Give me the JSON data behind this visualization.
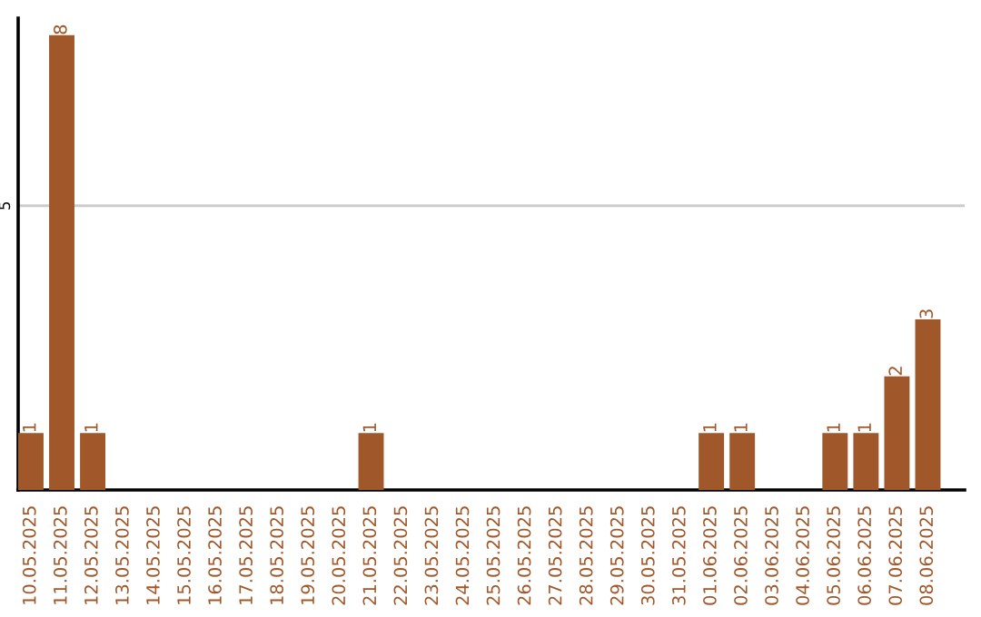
{
  "chart_data": {
    "type": "bar",
    "categories": [
      "10.05.2025",
      "11.05.2025",
      "12.05.2025",
      "13.05.2025",
      "14.05.2025",
      "15.05.2025",
      "16.05.2025",
      "17.05.2025",
      "18.05.2025",
      "19.05.2025",
      "20.05.2025",
      "21.05.2025",
      "22.05.2025",
      "23.05.2025",
      "24.05.2025",
      "25.05.2025",
      "26.05.2025",
      "27.05.2025",
      "28.05.2025",
      "29.05.2025",
      "30.05.2025",
      "31.05.2025",
      "01.06.2025",
      "02.06.2025",
      "03.06.2025",
      "04.06.2025",
      "05.06.2025",
      "06.06.2025",
      "07.06.2025",
      "08.06.2025"
    ],
    "values": [
      1,
      8,
      1,
      0,
      0,
      0,
      0,
      0,
      0,
      0,
      0,
      1,
      0,
      0,
      0,
      0,
      0,
      0,
      0,
      0,
      0,
      0,
      1,
      1,
      0,
      0,
      1,
      1,
      2,
      3
    ],
    "value_labels": [
      "1",
      "8",
      "1",
      null,
      null,
      null,
      null,
      null,
      null,
      null,
      null,
      "1",
      null,
      null,
      null,
      null,
      null,
      null,
      null,
      null,
      null,
      null,
      "1",
      "1",
      null,
      null,
      "1",
      "1",
      "2",
      "3"
    ],
    "color": "#a0582a",
    "ylim": [
      0,
      8.3
    ],
    "yticks": [
      5
    ],
    "grid": "y",
    "legend": false
  }
}
